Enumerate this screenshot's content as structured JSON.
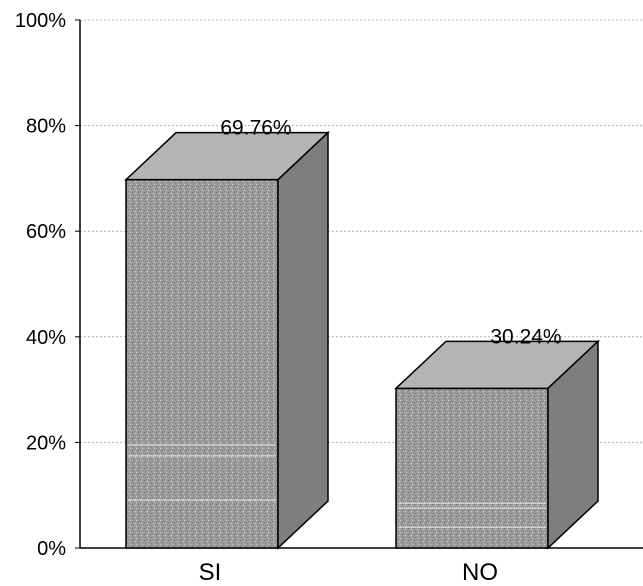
{
  "chart_data": {
    "type": "bar",
    "style": "3d",
    "categories": [
      "SI",
      "NO"
    ],
    "values": [
      69.76,
      30.24
    ],
    "data_labels": [
      "69.76%",
      "30.24%"
    ],
    "ylim": [
      0,
      100
    ],
    "yticks": [
      0,
      20,
      40,
      60,
      80,
      100
    ],
    "ytick_labels": [
      "0%",
      "20%",
      "40%",
      "60%",
      "80%",
      "100%"
    ],
    "grid": true,
    "legend": "none",
    "colors": {
      "bar_fill": "#9c9c9c",
      "bar_top": "#b4b4b4",
      "bar_side": "#7e7e7e",
      "edge": "#000000",
      "grid": "#b0b0b0"
    }
  }
}
